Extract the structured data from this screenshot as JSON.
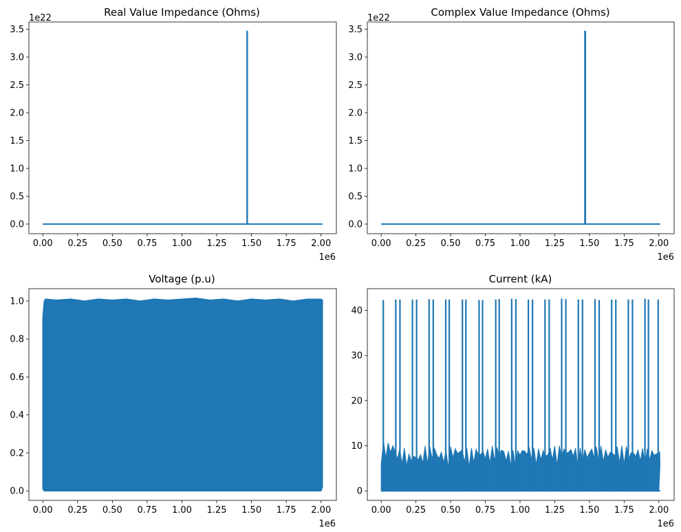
{
  "figure": {
    "background": "#ffffff",
    "line_color": "#1f77b4"
  },
  "chart_data": [
    {
      "type": "line",
      "title": "Real Value Impedance (Ohms)",
      "x_tick_labels": [
        "0.00",
        "0.25",
        "0.50",
        "0.75",
        "1.00",
        "1.25",
        "1.50",
        "1.75",
        "2.00"
      ],
      "x_ticks": [
        0,
        250000,
        500000,
        750000,
        1000000,
        1250000,
        1500000,
        1750000,
        2000000
      ],
      "x_offset_label": "1e6",
      "y_tick_labels": [
        "0.0",
        "0.5",
        "1.0",
        "1.5",
        "2.0",
        "2.5",
        "3.0",
        "3.5"
      ],
      "y_ticks": [
        0,
        5e+21,
        1e+22,
        1.5e+22,
        2e+22,
        2.5e+22,
        3e+22,
        3.5e+22
      ],
      "y_offset_label": "1e22",
      "xlim": [
        -100000,
        2110000
      ],
      "ylim": [
        -1.73e+21,
        3.63e+22
      ],
      "series": [
        {
          "x": [
            0,
            1465000,
            1468000,
            1468000,
            1470000,
            1470000,
            1473000,
            2010000
          ],
          "y": [
            0,
            0,
            0,
            3.46e+22,
            3.46e+22,
            0,
            0,
            0
          ]
        }
      ]
    },
    {
      "type": "line",
      "title": "Complex Value Impedance (Ohms)",
      "x_tick_labels": [
        "0.00",
        "0.25",
        "0.50",
        "0.75",
        "1.00",
        "1.25",
        "1.50",
        "1.75",
        "2.00"
      ],
      "x_ticks": [
        0,
        250000,
        500000,
        750000,
        1000000,
        1250000,
        1500000,
        1750000,
        2000000
      ],
      "x_offset_label": "1e6",
      "y_tick_labels": [
        "0.0",
        "0.5",
        "1.0",
        "1.5",
        "2.0",
        "2.5",
        "3.0",
        "3.5"
      ],
      "y_ticks": [
        0,
        5e+21,
        1e+22,
        1.5e+22,
        2e+22,
        2.5e+22,
        3e+22,
        3.5e+22
      ],
      "y_offset_label": "1e22",
      "xlim": [
        -100000,
        2110000
      ],
      "ylim": [
        -1.73e+21,
        3.63e+22
      ],
      "series": [
        {
          "x": [
            0,
            1465000,
            1467000,
            1467000,
            1471000,
            1471000,
            1473000,
            2010000
          ],
          "y": [
            0,
            0,
            0,
            3.46e+22,
            3.46e+22,
            0,
            0,
            0
          ]
        }
      ]
    },
    {
      "type": "area",
      "title": "Voltage (p.u)",
      "x_tick_labels": [
        "0.00",
        "0.25",
        "0.50",
        "0.75",
        "1.00",
        "1.25",
        "1.50",
        "1.75",
        "2.00"
      ],
      "x_ticks": [
        0,
        250000,
        500000,
        750000,
        1000000,
        1250000,
        1500000,
        1750000,
        2000000
      ],
      "x_offset_label": "1e6",
      "y_tick_labels": [
        "0.0",
        "0.2",
        "0.4",
        "0.6",
        "0.8",
        "1.0"
      ],
      "y_ticks": [
        0,
        0.2,
        0.4,
        0.6,
        0.8,
        1.0
      ],
      "y_offset_label": "",
      "xlim": [
        -100000,
        2110000
      ],
      "ylim": [
        -0.05,
        1.065
      ],
      "series": [
        {
          "x": [
            0,
            10000,
            20000,
            100000,
            200000,
            300000,
            400000,
            500000,
            600000,
            700000,
            800000,
            900000,
            1000000,
            1100000,
            1200000,
            1300000,
            1400000,
            1500000,
            1600000,
            1700000,
            1800000,
            1900000,
            2000000,
            2010000
          ],
          "upper": [
            0.91,
            1.0,
            1.01,
            1.005,
            1.01,
            1.0,
            1.01,
            1.005,
            1.01,
            1.0,
            1.01,
            1.005,
            1.01,
            1.015,
            1.005,
            1.01,
            1.0,
            1.01,
            1.005,
            1.01,
            1.0,
            1.01,
            1.01,
            1.005
          ],
          "lower": [
            0.01,
            0.0,
            0.0,
            0.0,
            0.0,
            0.0,
            0.0,
            0.0,
            0.0,
            0.0,
            0.0,
            0.0,
            0.0,
            0.0,
            0.0,
            0.0,
            0.0,
            0.0,
            0.0,
            0.0,
            0.0,
            0.0,
            0.0,
            0.02
          ]
        }
      ]
    },
    {
      "type": "line",
      "title": "Current (kA)",
      "x_tick_labels": [
        "0.00",
        "0.25",
        "0.50",
        "0.75",
        "1.00",
        "1.25",
        "1.50",
        "1.75",
        "2.00"
      ],
      "x_ticks": [
        0,
        250000,
        500000,
        750000,
        1000000,
        1250000,
        1500000,
        1750000,
        2000000
      ],
      "x_offset_label": "1e6",
      "y_tick_labels": [
        "0",
        "10",
        "20",
        "30",
        "40"
      ],
      "y_ticks": [
        0,
        10,
        20,
        30,
        40
      ],
      "y_offset_label": "",
      "xlim": [
        -100000,
        2110000
      ],
      "ylim": [
        -2.1,
        44.8
      ],
      "spikes": {
        "x": [
          15000,
          105000,
          135000,
          225000,
          255000,
          345000,
          375000,
          465000,
          490000,
          585000,
          610000,
          705000,
          730000,
          825000,
          850000,
          940000,
          970000,
          1060000,
          1090000,
          1180000,
          1210000,
          1300000,
          1330000,
          1420000,
          1450000,
          1540000,
          1570000,
          1660000,
          1690000,
          1780000,
          1810000,
          1900000,
          1925000,
          1995000
        ],
        "y": [
          42.3,
          42.4,
          42.4,
          42.4,
          42.4,
          42.5,
          42.4,
          42.4,
          42.4,
          42.4,
          42.4,
          42.3,
          42.3,
          42.4,
          42.5,
          42.6,
          42.5,
          42.4,
          42.4,
          42.4,
          42.4,
          42.6,
          42.5,
          42.4,
          42.4,
          42.5,
          42.3,
          42.4,
          42.4,
          42.4,
          42.4,
          42.6,
          42.4,
          42.4
        ]
      },
      "baseline_envelope": {
        "x": [
          0,
          100000,
          200000,
          300000,
          400000,
          500000,
          600000,
          700000,
          800000,
          900000,
          1000000,
          1100000,
          1200000,
          1300000,
          1400000,
          1500000,
          1600000,
          1700000,
          1800000,
          1900000,
          2000000
        ],
        "upper": [
          11,
          9.5,
          8.5,
          10,
          9,
          10,
          9.5,
          9.5,
          10,
          9,
          10,
          9.5,
          10,
          10,
          9.5,
          10,
          9.5,
          10,
          9.5,
          9.5,
          8.7
        ]
      }
    }
  ]
}
